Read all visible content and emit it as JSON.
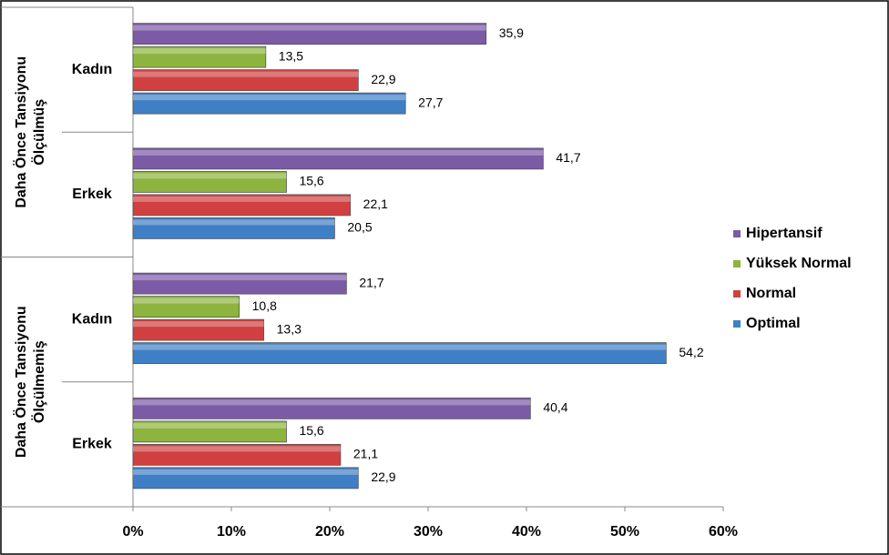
{
  "chart_data": {
    "type": "hbar",
    "groups": [
      [
        "Daha Önce Tansiyonu",
        "Ölçülmüş"
      ],
      [
        "Daha Önce Tansiyonu",
        "Ölçülmemiş"
      ]
    ],
    "categories": [
      "Kadın",
      "Erkek",
      "Kadın",
      "Erkek"
    ],
    "series": [
      {
        "name": "Hipertansif",
        "color": "#7b5aa6",
        "values": [
          35.9,
          41.7,
          21.7,
          40.4
        ],
        "value_labels": [
          "35,9",
          "41,7",
          "21,7",
          "40,4"
        ]
      },
      {
        "name": "Yüksek Normal",
        "color": "#8db43e",
        "values": [
          13.5,
          15.6,
          10.8,
          15.6
        ],
        "value_labels": [
          "13,5",
          "15,6",
          "10,8",
          "15,6"
        ]
      },
      {
        "name": "Normal",
        "color": "#d04040",
        "values": [
          22.9,
          22.1,
          13.3,
          21.1
        ],
        "value_labels": [
          "22,9",
          "22,1",
          "13,3",
          "21,1"
        ]
      },
      {
        "name": "Optimal",
        "color": "#3f7fc6",
        "values": [
          27.7,
          20.5,
          54.2,
          22.9
        ],
        "value_labels": [
          "27,7",
          "20,5",
          "54,2",
          "22,9"
        ]
      }
    ],
    "xlim": [
      0,
      60
    ],
    "xticks": [
      {
        "value": 0,
        "label": "0%"
      },
      {
        "value": 10,
        "label": "10%"
      },
      {
        "value": 20,
        "label": "20%"
      },
      {
        "value": 30,
        "label": "30%"
      },
      {
        "value": 40,
        "label": "40%"
      },
      {
        "value": 50,
        "label": "50%"
      },
      {
        "value": 60,
        "label": "60%"
      }
    ],
    "legend": "right"
  }
}
